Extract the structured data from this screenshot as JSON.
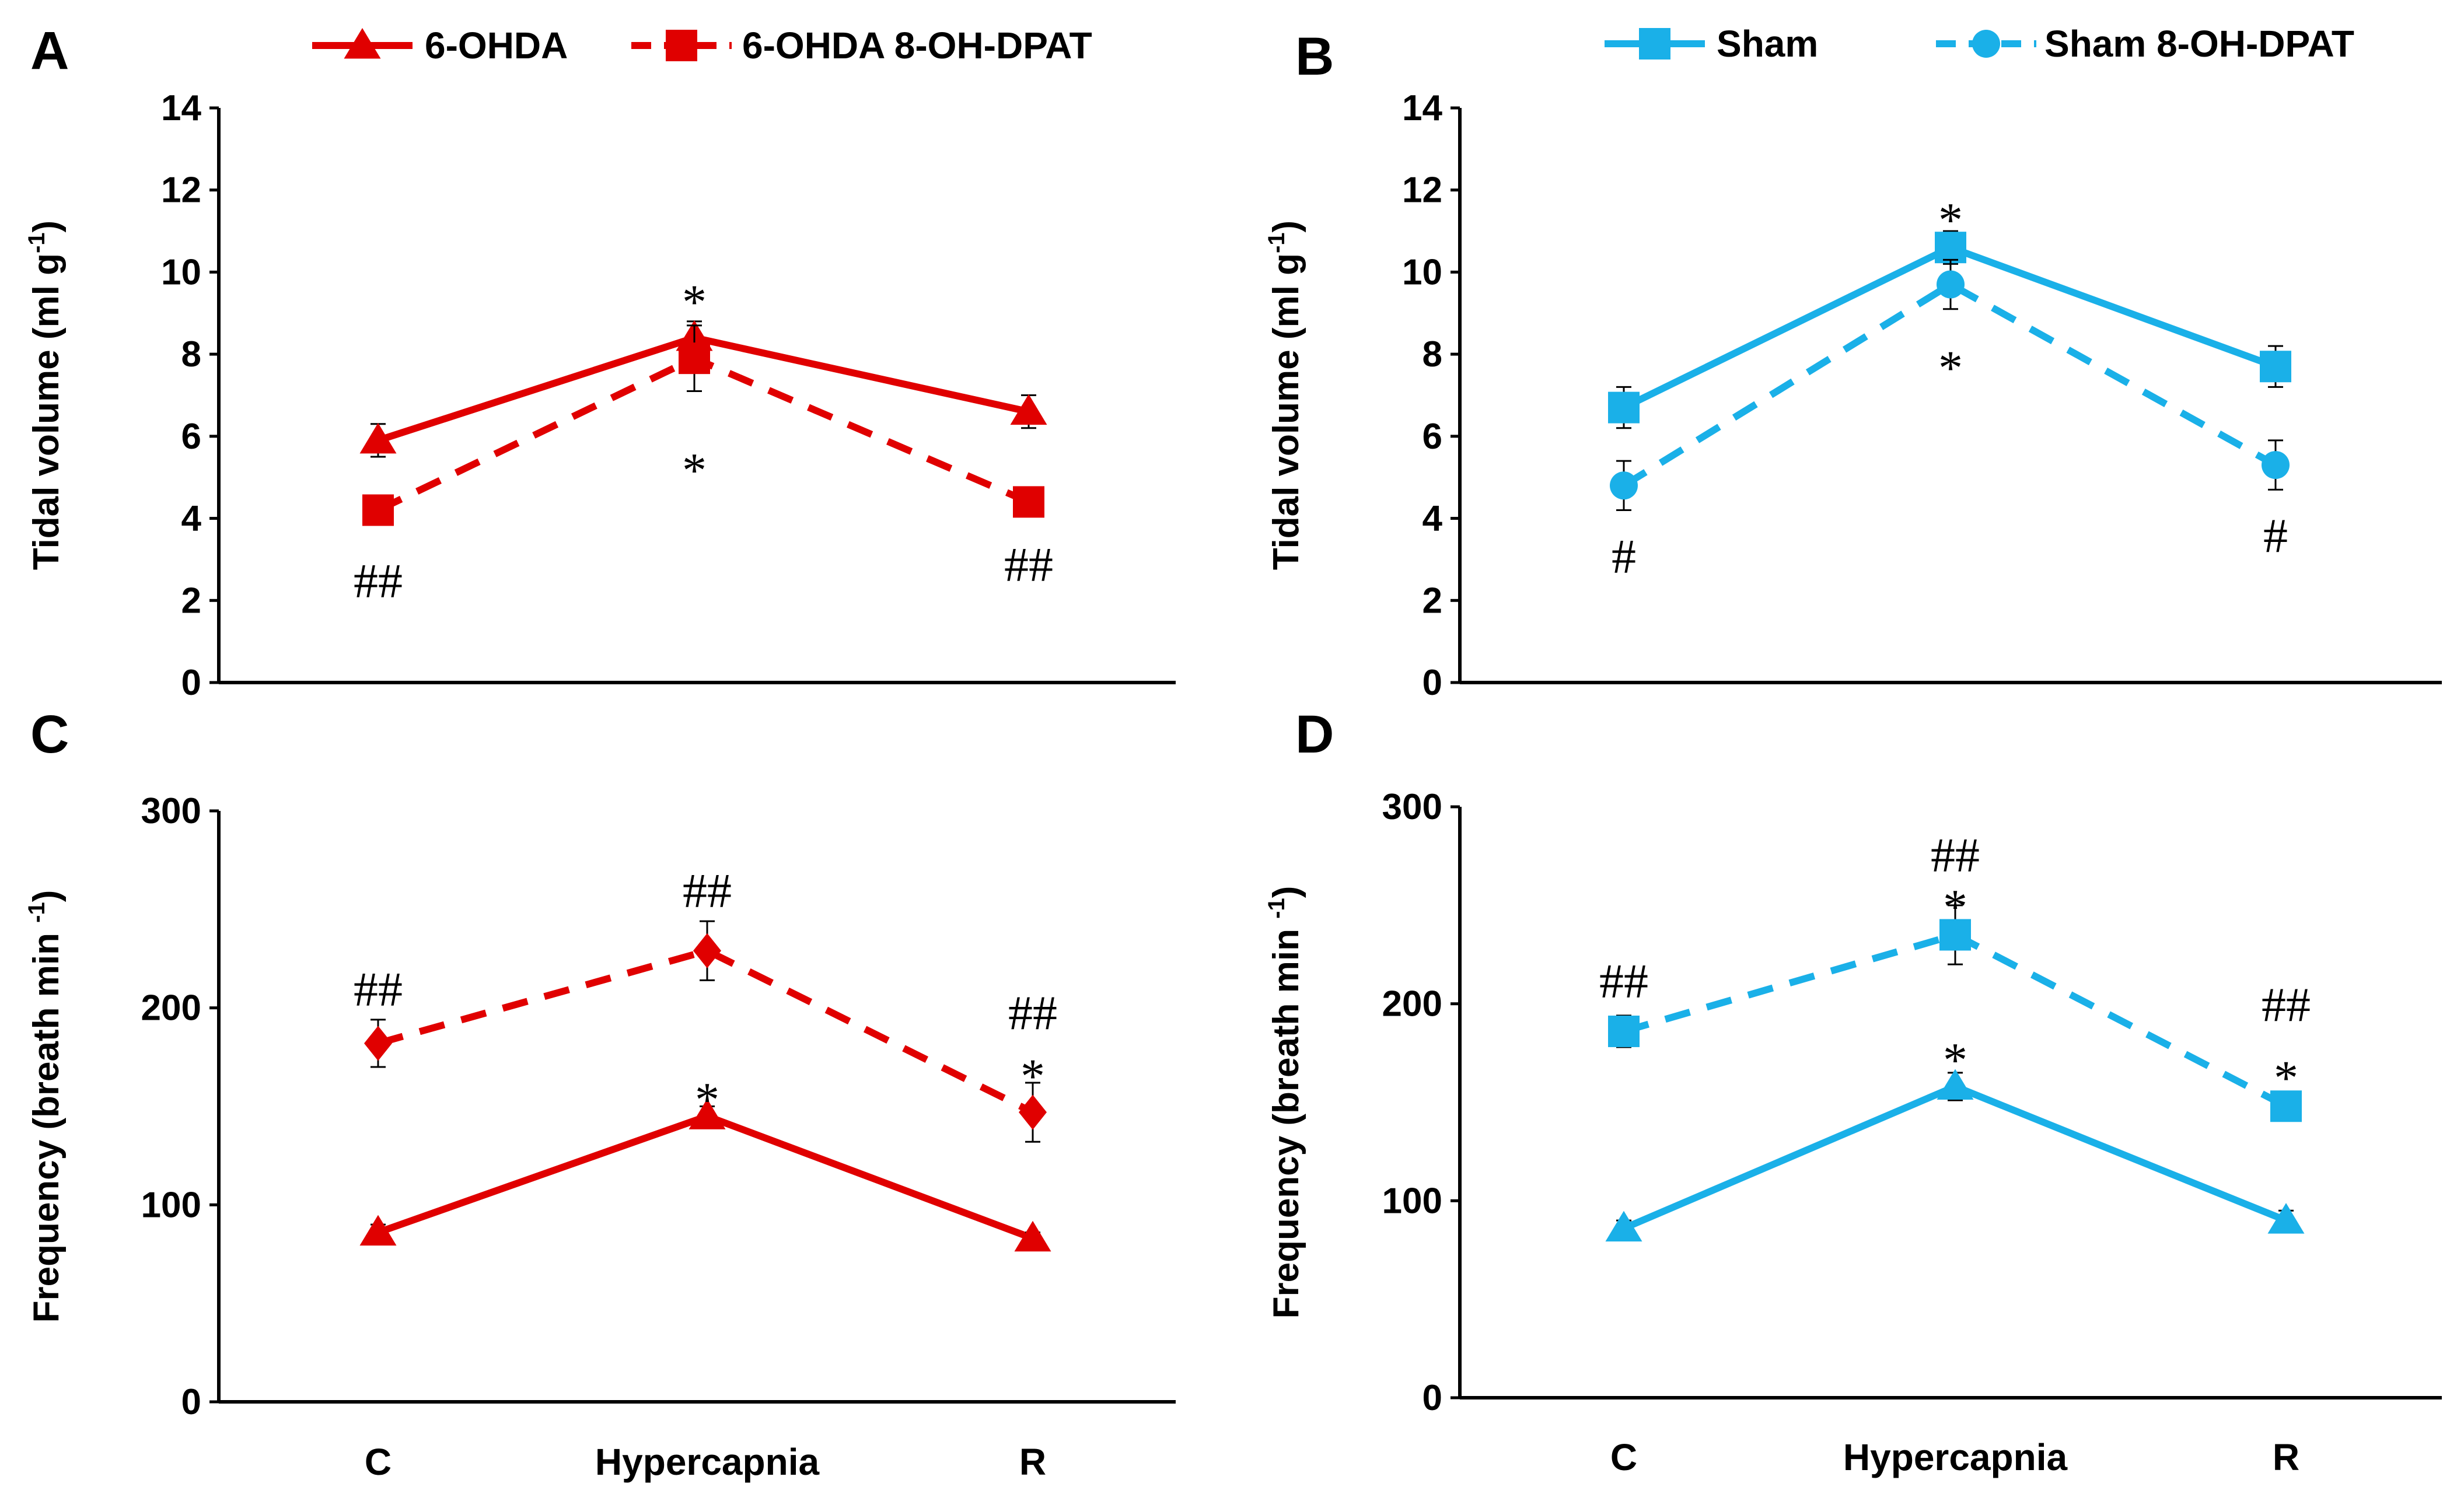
{
  "chart_data": [
    {
      "panel": "A",
      "type": "line",
      "ylabel_main": "Tidal volume (ml g",
      "ylabel_sup": "-1",
      "ylabel_tail": ")",
      "ylim": [
        0,
        14
      ],
      "yticks": [
        "0",
        "2",
        "4",
        "6",
        "8",
        "10",
        "12",
        "14"
      ],
      "categories": [
        "C",
        "Hypercapnia",
        "R"
      ],
      "show_categories": false,
      "legend": {
        "placement": "top",
        "items": [
          0,
          1
        ]
      },
      "series": [
        {
          "name": "6-OHDA",
          "color": "#e00000",
          "dash": false,
          "marker": "triangle",
          "values": [
            5.9,
            8.4,
            6.6
          ],
          "errors": [
            0.4,
            0.4,
            0.4
          ]
        },
        {
          "name": "6-OHDA 8-OH-DPAT",
          "color": "#e00000",
          "dash": true,
          "marker": "square",
          "values": [
            4.2,
            7.9,
            4.4
          ],
          "errors": [
            0.0,
            0.8,
            0.0
          ]
        }
      ],
      "annotations": [
        {
          "text": "##",
          "x": 0,
          "y": 2.5
        },
        {
          "text": "*",
          "x": 1,
          "y": 9.3
        },
        {
          "text": "*",
          "x": 1,
          "y": 5.2
        },
        {
          "text": "##",
          "x": 2,
          "y": 2.9
        }
      ]
    },
    {
      "panel": "B",
      "type": "line",
      "ylabel_main": "Tidal volume (ml g",
      "ylabel_sup": "-1",
      "ylabel_tail": ")",
      "ylim": [
        0,
        14
      ],
      "yticks": [
        "0",
        "2",
        "4",
        "6",
        "8",
        "10",
        "12",
        "14"
      ],
      "categories": [
        "C",
        "Hypercapnia",
        "R"
      ],
      "show_categories": false,
      "legend": {
        "placement": "top",
        "items": [
          0,
          1
        ]
      },
      "series": [
        {
          "name": "Sham",
          "color": "#1ab0e8",
          "dash": false,
          "marker": "square",
          "values": [
            6.7,
            10.6,
            7.7
          ],
          "errors": [
            0.5,
            0.4,
            0.5
          ]
        },
        {
          "name": "Sham 8-OH-DPAT",
          "color": "#1ab0e8",
          "dash": true,
          "marker": "circle",
          "values": [
            4.8,
            9.7,
            5.3
          ],
          "errors": [
            0.6,
            0.6,
            0.6
          ]
        }
      ],
      "annotations": [
        {
          "text": "#",
          "x": 0,
          "y": 3.1
        },
        {
          "text": "*",
          "x": 1,
          "y": 11.3
        },
        {
          "text": "*",
          "x": 1,
          "y": 7.7
        },
        {
          "text": "#",
          "x": 2,
          "y": 3.6
        }
      ]
    },
    {
      "panel": "C",
      "type": "line",
      "ylabel_main": "Frequency (breath min ",
      "ylabel_sup": "-1",
      "ylabel_tail": ")",
      "ylim": [
        0,
        300
      ],
      "yticks": [
        "0",
        "100",
        "200",
        "300"
      ],
      "categories": [
        "C",
        "Hypercapnia",
        "R"
      ],
      "show_categories": true,
      "legend": null,
      "series": [
        {
          "name": "6-OHDA",
          "color": "#e00000",
          "dash": false,
          "marker": "triangle",
          "values": [
            86,
            145,
            83
          ],
          "errors": [
            4,
            5,
            3
          ]
        },
        {
          "name": "6-OHDA 8-OH-DPAT",
          "color": "#e00000",
          "dash": true,
          "marker": "diamond",
          "values": [
            182,
            229,
            147
          ],
          "errors": [
            12,
            15,
            15
          ]
        }
      ],
      "annotations": [
        {
          "text": "##",
          "x": 0,
          "y": 210
        },
        {
          "text": "##",
          "x": 1,
          "y": 260
        },
        {
          "text": "*",
          "x": 1,
          "y": 154
        },
        {
          "text": "##",
          "x": 2,
          "y": 198
        },
        {
          "text": "*",
          "x": 2,
          "y": 166
        }
      ]
    },
    {
      "panel": "D",
      "type": "line",
      "ylabel_main": "Frequency (breath min ",
      "ylabel_sup": "-1",
      "ylabel_tail": ")",
      "ylim": [
        0,
        300
      ],
      "yticks": [
        "0",
        "100",
        "200",
        "300"
      ],
      "categories": [
        "C",
        "Hypercapnia",
        "R"
      ],
      "show_categories": true,
      "legend": null,
      "series": [
        {
          "name": "Sham",
          "color": "#1ab0e8",
          "dash": false,
          "marker": "triangle",
          "values": [
            86,
            158,
            90
          ],
          "errors": [
            4,
            7,
            5
          ]
        },
        {
          "name": "Sham 8-OH-DPAT",
          "color": "#1ab0e8",
          "dash": true,
          "marker": "square",
          "values": [
            186,
            235,
            148
          ],
          "errors": [
            8,
            15,
            6
          ]
        }
      ],
      "annotations": [
        {
          "text": "##",
          "x": 0,
          "y": 212
        },
        {
          "text": "##",
          "x": 1,
          "y": 276
        },
        {
          "text": "*",
          "x": 1,
          "y": 250
        },
        {
          "text": "*",
          "x": 1,
          "y": 172
        },
        {
          "text": "##",
          "x": 2,
          "y": 200
        },
        {
          "text": "*",
          "x": 2,
          "y": 163
        }
      ]
    }
  ]
}
